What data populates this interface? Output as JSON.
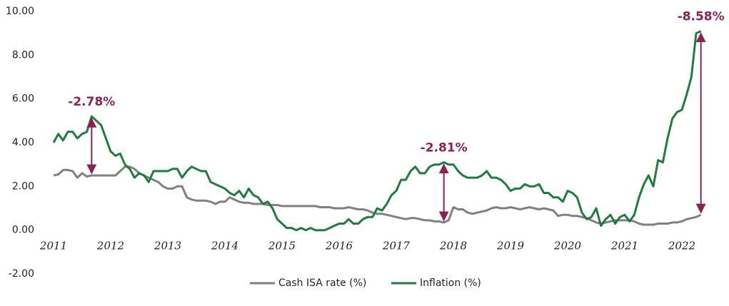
{
  "chart_data": {
    "type": "line",
    "categories": [
      "2011",
      null,
      null,
      null,
      null,
      null,
      null,
      null,
      null,
      null,
      null,
      null,
      "2012",
      null,
      null,
      null,
      null,
      null,
      null,
      null,
      null,
      null,
      null,
      null,
      "2013",
      null,
      null,
      null,
      null,
      null,
      null,
      null,
      null,
      null,
      null,
      null,
      "2014",
      null,
      null,
      null,
      null,
      null,
      null,
      null,
      null,
      null,
      null,
      null,
      "2015",
      null,
      null,
      null,
      null,
      null,
      null,
      null,
      null,
      null,
      null,
      null,
      "2016",
      null,
      null,
      null,
      null,
      null,
      null,
      null,
      null,
      null,
      null,
      null,
      "2017",
      null,
      null,
      null,
      null,
      null,
      null,
      null,
      null,
      null,
      null,
      null,
      "2018",
      null,
      null,
      null,
      null,
      null,
      null,
      null,
      null,
      null,
      null,
      null,
      "2019",
      null,
      null,
      null,
      null,
      null,
      null,
      null,
      null,
      null,
      null,
      null,
      "2020",
      null,
      null,
      null,
      null,
      null,
      null,
      null,
      null,
      null,
      null,
      null,
      "2021",
      null,
      null,
      null,
      null,
      null,
      null,
      null,
      null,
      null,
      null,
      null,
      "2022",
      null,
      null,
      null,
      null
    ],
    "series": [
      {
        "name": "Cash ISA rate (%)",
        "color": "#808080",
        "values": [
          2.5,
          2.55,
          2.75,
          2.75,
          2.7,
          2.4,
          2.6,
          2.45,
          2.5,
          2.5,
          2.5,
          2.5,
          2.5,
          2.5,
          2.7,
          2.9,
          2.9,
          2.8,
          2.6,
          2.5,
          2.4,
          2.3,
          2.2,
          2.0,
          1.9,
          1.9,
          2.0,
          2.0,
          1.5,
          1.4,
          1.35,
          1.35,
          1.35,
          1.3,
          1.2,
          1.3,
          1.3,
          1.5,
          1.4,
          1.3,
          1.25,
          1.25,
          1.2,
          1.2,
          1.2,
          1.15,
          1.15,
          1.15,
          1.1,
          1.1,
          1.1,
          1.1,
          1.1,
          1.1,
          1.1,
          1.1,
          1.05,
          1.05,
          1.05,
          1.0,
          1.0,
          1.0,
          1.05,
          1.0,
          0.95,
          0.95,
          0.9,
          0.8,
          0.75,
          0.75,
          0.7,
          0.65,
          0.6,
          0.55,
          0.5,
          0.55,
          0.55,
          0.5,
          0.45,
          0.45,
          0.4,
          0.4,
          0.35,
          0.45,
          1.05,
          0.95,
          0.95,
          0.8,
          0.75,
          0.8,
          0.85,
          0.9,
          1.0,
          1.05,
          1.0,
          1.0,
          1.05,
          1.0,
          0.95,
          1.0,
          1.05,
          1.0,
          0.95,
          1.0,
          0.95,
          0.9,
          0.65,
          0.7,
          0.7,
          0.65,
          0.65,
          0.6,
          0.55,
          0.45,
          0.35,
          0.3,
          0.35,
          0.4,
          0.45,
          0.45,
          0.45,
          0.45,
          0.4,
          0.3,
          0.25,
          0.25,
          0.25,
          0.3,
          0.3,
          0.3,
          0.35,
          0.35,
          0.4,
          0.5,
          0.55,
          0.6,
          0.7
        ]
      },
      {
        "name": "Inflation (%)",
        "color": "#1e7d3c",
        "values": [
          4.0,
          4.4,
          4.1,
          4.5,
          4.5,
          4.2,
          4.4,
          4.5,
          5.2,
          5.0,
          4.8,
          4.2,
          3.6,
          3.4,
          3.5,
          3.0,
          2.8,
          2.4,
          2.6,
          2.5,
          2.2,
          2.7,
          2.7,
          2.7,
          2.7,
          2.8,
          2.8,
          2.4,
          2.7,
          2.9,
          2.8,
          2.7,
          2.7,
          2.2,
          2.1,
          2.0,
          1.9,
          1.7,
          1.6,
          1.8,
          1.5,
          1.9,
          1.6,
          1.5,
          1.2,
          1.3,
          1.0,
          0.5,
          0.3,
          0.1,
          0.1,
          0.0,
          0.1,
          0.0,
          0.1,
          0.0,
          0.0,
          0.0,
          0.1,
          0.2,
          0.3,
          0.3,
          0.5,
          0.3,
          0.3,
          0.5,
          0.6,
          0.6,
          1.0,
          0.9,
          1.2,
          1.6,
          1.8,
          2.3,
          2.3,
          2.7,
          2.9,
          2.6,
          2.6,
          2.9,
          3.0,
          3.0,
          3.1,
          3.0,
          3.0,
          2.7,
          2.5,
          2.4,
          2.4,
          2.4,
          2.5,
          2.7,
          2.4,
          2.4,
          2.3,
          2.1,
          1.8,
          1.9,
          1.9,
          2.1,
          2.0,
          2.0,
          2.1,
          1.7,
          1.7,
          1.5,
          1.5,
          1.3,
          1.8,
          1.7,
          1.5,
          0.8,
          0.5,
          0.6,
          1.0,
          0.2,
          0.5,
          0.7,
          0.3,
          0.6,
          0.7,
          0.4,
          0.7,
          1.5,
          2.1,
          2.5,
          2.0,
          3.2,
          3.1,
          4.2,
          5.1,
          5.4,
          5.5,
          6.2,
          7.0,
          9.0,
          9.1
        ]
      }
    ],
    "annotations": [
      {
        "text": "-2.78%",
        "index": 8
      },
      {
        "text": "-2.81%",
        "index": 82
      },
      {
        "text": "-8.58%",
        "index": 136
      }
    ],
    "annotation_color": "#8b2252",
    "ylim": [
      -2,
      10
    ],
    "yticks": [
      {
        "value": -2,
        "label": "-2.00"
      },
      {
        "value": 0,
        "label": "0.00"
      },
      {
        "value": 2,
        "label": "2.00"
      },
      {
        "value": 4,
        "label": "4.00"
      },
      {
        "value": 6,
        "label": "6.00"
      },
      {
        "value": 8,
        "label": "8.00"
      },
      {
        "value": 10,
        "label": "10.00"
      }
    ],
    "grid": false
  }
}
